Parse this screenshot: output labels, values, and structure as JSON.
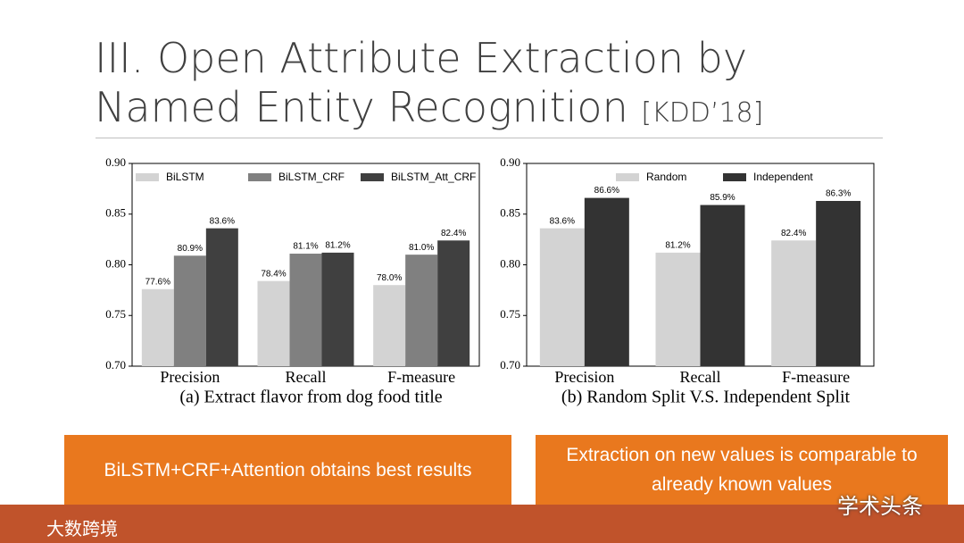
{
  "title": {
    "line1": "III. Open Attribute Extraction by",
    "line2": "Named Entity Recognition",
    "tag": "[KDD’18]"
  },
  "callouts": [
    "BiLSTM+CRF+Attention obtains best results",
    "Extraction on new values is comparable to already known values"
  ],
  "footer": {
    "brand": "大数跨境",
    "watermark": "学术头条"
  },
  "chart_data": [
    {
      "type": "bar",
      "xlabel": "(a) Extract flavor from dog food title",
      "categories": [
        "Precision",
        "Recall",
        "F-measure"
      ],
      "series": [
        {
          "name": "BiLSTM",
          "color": "#d3d3d3",
          "values": [
            0.776,
            0.784,
            0.78
          ],
          "value_labels": [
            "77.6%",
            "78.4%",
            "78.0%"
          ]
        },
        {
          "name": "BiLSTM_CRF",
          "color": "#808080",
          "values": [
            0.809,
            0.811,
            0.81
          ],
          "value_labels": [
            "80.9%",
            "81.1%",
            "81.0%"
          ]
        },
        {
          "name": "BiLSTM_Att_CRF",
          "color": "#404040",
          "values": [
            0.836,
            0.812,
            0.824
          ],
          "value_labels": [
            "83.6%",
            "81.2%",
            "82.4%"
          ]
        }
      ],
      "ylim": [
        0.7,
        0.9
      ],
      "yticks": [
        {
          "value": 0.7,
          "label": "0.70"
        },
        {
          "value": 0.75,
          "label": "0.75"
        },
        {
          "value": 0.8,
          "label": "0.80"
        },
        {
          "value": 0.85,
          "label": "0.85"
        },
        {
          "value": 0.9,
          "label": "0.90"
        }
      ]
    },
    {
      "type": "bar",
      "xlabel": "(b) Random Split V.S. Independent Split",
      "categories": [
        "Precision",
        "Recall",
        "F-measure"
      ],
      "series": [
        {
          "name": "Random",
          "color": "#d3d3d3",
          "values": [
            0.836,
            0.812,
            0.824
          ],
          "value_labels": [
            "83.6%",
            "81.2%",
            "82.4%"
          ]
        },
        {
          "name": "Independent",
          "color": "#333333",
          "values": [
            0.866,
            0.859,
            0.863
          ],
          "value_labels": [
            "86.6%",
            "85.9%",
            "86.3%"
          ]
        }
      ],
      "ylim": [
        0.7,
        0.9
      ],
      "yticks": [
        {
          "value": 0.7,
          "label": "0.70"
        },
        {
          "value": 0.75,
          "label": "0.75"
        },
        {
          "value": 0.8,
          "label": "0.80"
        },
        {
          "value": 0.85,
          "label": "0.85"
        },
        {
          "value": 0.9,
          "label": "0.90"
        }
      ]
    }
  ]
}
